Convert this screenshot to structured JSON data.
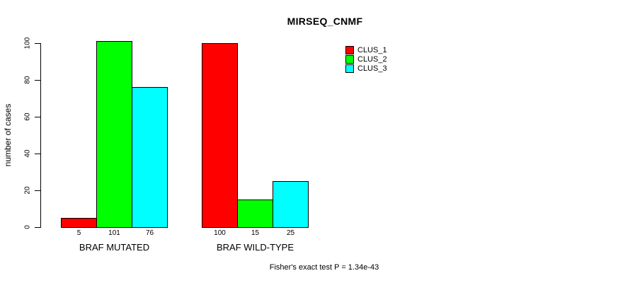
{
  "chart_data": {
    "type": "bar",
    "title": "MIRSEQ_CNMF",
    "ylabel": "number of cases",
    "xlabel": "",
    "ylim": [
      0,
      100
    ],
    "yticks": [
      0,
      20,
      40,
      60,
      80,
      100
    ],
    "grid": false,
    "legend_position": "top-right",
    "categories": [
      "BRAF MUTATED",
      "BRAF WILD-TYPE"
    ],
    "series": [
      {
        "name": "CLUS_1",
        "color": "#FF0000",
        "values": [
          5,
          100
        ]
      },
      {
        "name": "CLUS_2",
        "color": "#00FF00",
        "values": [
          101,
          15
        ]
      },
      {
        "name": "CLUS_3",
        "color": "#00FFFF",
        "values": [
          76,
          25
        ]
      }
    ],
    "bar_value_labels": [
      [
        "5",
        "101",
        "76"
      ],
      [
        "100",
        "15",
        "25"
      ]
    ],
    "annotation": "Fisher's exact test P = 1.34e-43"
  },
  "style": {
    "background": "#FFFFFF",
    "text_color": "#000000",
    "bar_border_color": "#000000",
    "axis_color": "#000000"
  }
}
